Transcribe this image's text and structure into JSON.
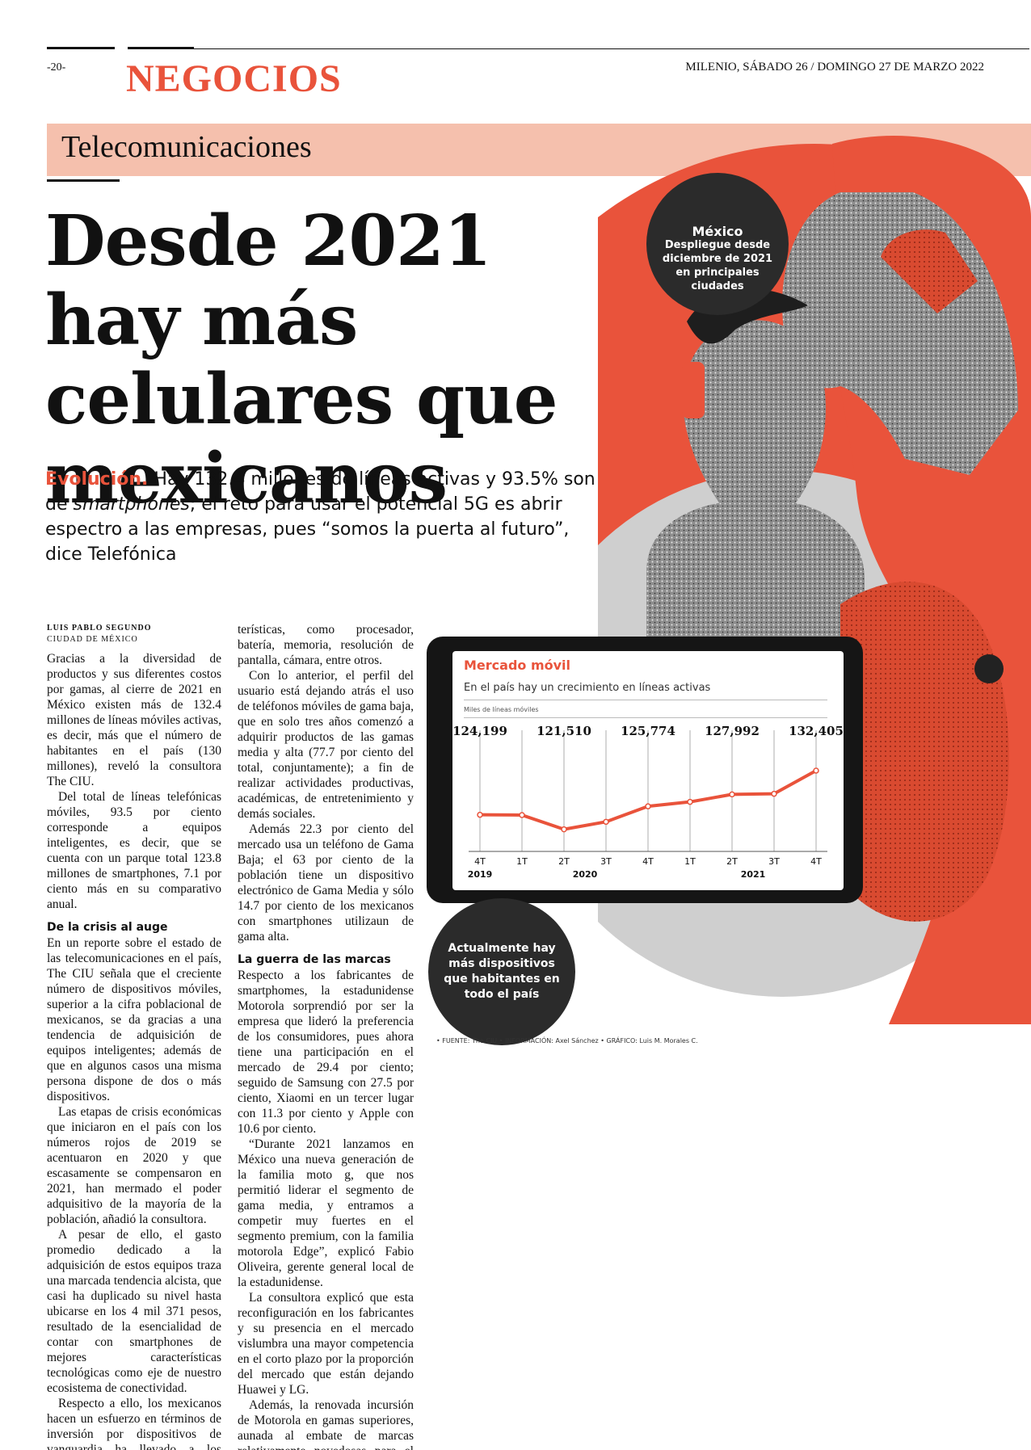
{
  "masthead": {
    "page_number": "-20-",
    "section": "NEGOCIOS",
    "dateline": "MILENIO, SÁBADO 26 / DOMINGO 27 DE MARZO 2022"
  },
  "topic": "Telecomunicaciones",
  "headline": "Desde 2021 hay más celulares que mexicanos",
  "deck": {
    "lead": "Evolución.",
    "text_1": " Hay 132.4 millones de líneas activas y 93.5% son de ",
    "emphasis": "smartphones",
    "text_2": "; el reto para usar el potencial 5G es abrir espectro a las empresas, pues “somos la puerta al futuro”, dice Telefónica"
  },
  "byline": {
    "author": "LUIS PABLO SEGUNDO",
    "city": "CIUDAD DE MÉXICO"
  },
  "column1": {
    "p1": "Gracias a la diversidad de productos y sus diferentes costos por gamas, al cierre de 2021 en México existen más de 132.4 millones de líneas móviles activas, es decir, más que el número de habitantes en el país (130 millones), reveló la consultora The CIU.",
    "p2": "Del total de líneas telefónicas móviles, 93.5 por ciento corresponde a equipos inteligentes, es decir, que se cuenta con un parque total 123.8 millones de smartphones, 7.1 por ciento más en su comparativo anual.",
    "subhead": "De la crisis al auge",
    "p3": "En un reporte sobre el estado de las telecomunicaciones en el país, The CIU señala que el creciente número de dispositivos móviles, superior a la cifra poblacional de mexicanos, se da gracias a una tendencia de adquisición de equipos inteligentes; además de que en algunos casos una misma persona dispone de dos o más dispositivos.",
    "p4": "Las etapas de crisis económicas que iniciaron en el país con los números rojos de 2019 se acentuaron en 2020 y que escasamente se compensaron en 2021, han mermado el poder adquisitivo de la mayoría de la población, añadió la consultora.",
    "p5": "A pesar de ello, el gasto promedio dedicado a la adquisición de estos equipos traza una marcada tendencia alcista, que casi ha duplicado su nivel hasta ubicarse en los 4 mil 371 pesos, resultado de la esencialidad de contar con smartphones de mejores características tecnológicas como eje de nuestro ecosistema de conectividad.",
    "p6": "Respecto a ello, los mexicanos hacen un esfuerzo en términos de inversión por dispositivos de vanguardia ha llevado a los usuarios a contar con mejores carac-"
  },
  "column2": {
    "p1": "terísticas, como procesador, batería, memoria, resolución de pantalla, cámara, entre otros.",
    "p2": "Con lo anterior, el perfil del usuario está dejando atrás el uso de teléfonos móviles de gama baja, que en solo tres años comenzó a adquirir productos de las gamas media y alta (77.7 por ciento del total, conjuntamente); a fin de realizar actividades productivas, académicas, de entretenimiento y demás sociales.",
    "p3": "Además 22.3 por ciento del mercado usa un teléfono de Gama Baja; el 63 por ciento de la población tiene un dispositivo electrónico de Gama Media y sólo 14.7 por ciento de los mexicanos con smartphones utilizaun de gama alta.",
    "subhead": "La guerra de las marcas",
    "p4": "Respecto a los fabricantes de smartphomes, la estadunidense Motorola sorprendió por ser la empresa que lideró la preferencia de los consumidores, pues ahora tiene una participación en el mercado de 29.4 por ciento; seguido de Samsung con 27.5 por ciento, Xiaomi en un tercer lugar con 11.3 por ciento y Apple con 10.6 por ciento.",
    "p5": "“Durante 2021 lanzamos en México una nueva generación de la familia moto g, que nos permitió liderar el segmento de gama media, y entramos a competir muy fuertes en el segmento premium, con la familia motorola Edge”, explicó Fabio Oliveira, gerente general local de la estadunidense.",
    "p6": "La consultora explicó que esta reconfiguración en los fabricantes y su presencia en el mercado vislumbra una mayor competencia en el corto plazo por la proporción del mercado que están dejando Huawei y LG.",
    "p7": "Además, la renovada incursión de Motorola en gamas superiores, aunada al embate de marcas relativamente novedosas para el mer-"
  },
  "bubbles": {
    "mexico_head": "México",
    "mexico_text": "Despliegue desde diciembre de 2021 en principales ciudades",
    "now_text": "Actualmente hay más dispositivos que habitantes en todo el país"
  },
  "credits": "• FUENTE: The CIU • INFORMACIÓN: Axel Sánchez • GRÁFICO: Luis M. Morales C.",
  "colors": {
    "accent": "#e9533b",
    "band": "#f5c0ad",
    "bubble": "#2b2b2b"
  },
  "chart_data": {
    "type": "line",
    "title": "Mercado móvil",
    "subtitle": "En el país hay un crecimiento en líneas activas",
    "ylabel": "Miles de líneas móviles",
    "x": [
      "4T",
      "1T",
      "2T",
      "3T",
      "4T",
      "1T",
      "2T",
      "3T",
      "4T"
    ],
    "years": [
      {
        "label": "2019",
        "from": 0,
        "to": 0
      },
      {
        "label": "2020",
        "from": 1,
        "to": 4
      },
      {
        "label": "2021",
        "from": 5,
        "to": 8
      }
    ],
    "values": [
      124199,
      124150,
      121510,
      122900,
      125774,
      126600,
      127992,
      128100,
      132405
    ],
    "labels": [
      {
        "index": 0,
        "text": "124,199"
      },
      {
        "index": 2,
        "text": "121,510"
      },
      {
        "index": 4,
        "text": "125,774"
      },
      {
        "index": 6,
        "text": "127,992"
      },
      {
        "index": 8,
        "text": "132,405"
      }
    ],
    "ylim": [
      118000,
      136000
    ]
  }
}
